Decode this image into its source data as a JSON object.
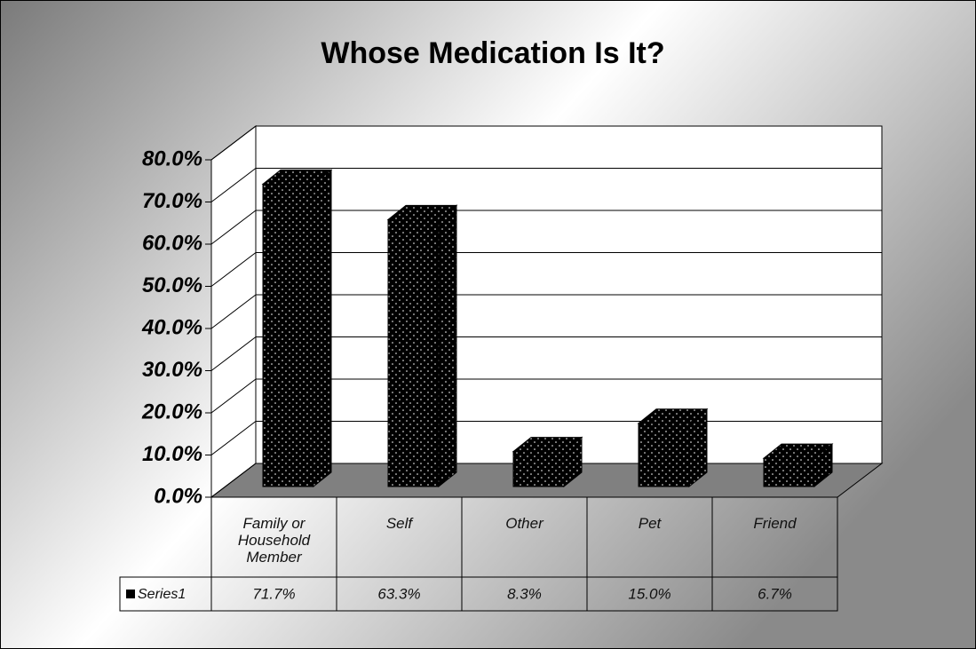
{
  "chart_data": {
    "type": "bar3d",
    "title": "Whose Medication Is It?",
    "categories": [
      "Family or Household Member",
      "Self",
      "Other",
      "Pet",
      "Friend"
    ],
    "series": [
      {
        "name": "Series1",
        "color": "#000000",
        "values": [
          71.7,
          63.3,
          8.3,
          15.0,
          6.7
        ],
        "value_labels": [
          "71.7%",
          "63.3%",
          "8.3%",
          "15.0%",
          "6.7%"
        ]
      }
    ],
    "ylim": [
      0,
      80
    ],
    "yticks": [
      {
        "value": 0,
        "label": "0.0%"
      },
      {
        "value": 10,
        "label": "10.0%"
      },
      {
        "value": 20,
        "label": "20.0%"
      },
      {
        "value": 30,
        "label": "30.0%"
      },
      {
        "value": 40,
        "label": "40.0%"
      },
      {
        "value": 50,
        "label": "50.0%"
      },
      {
        "value": 60,
        "label": "60.0%"
      },
      {
        "value": 70,
        "label": "70.0%"
      },
      {
        "value": 80,
        "label": "80.0%"
      }
    ],
    "grid": true,
    "data_table": true
  }
}
